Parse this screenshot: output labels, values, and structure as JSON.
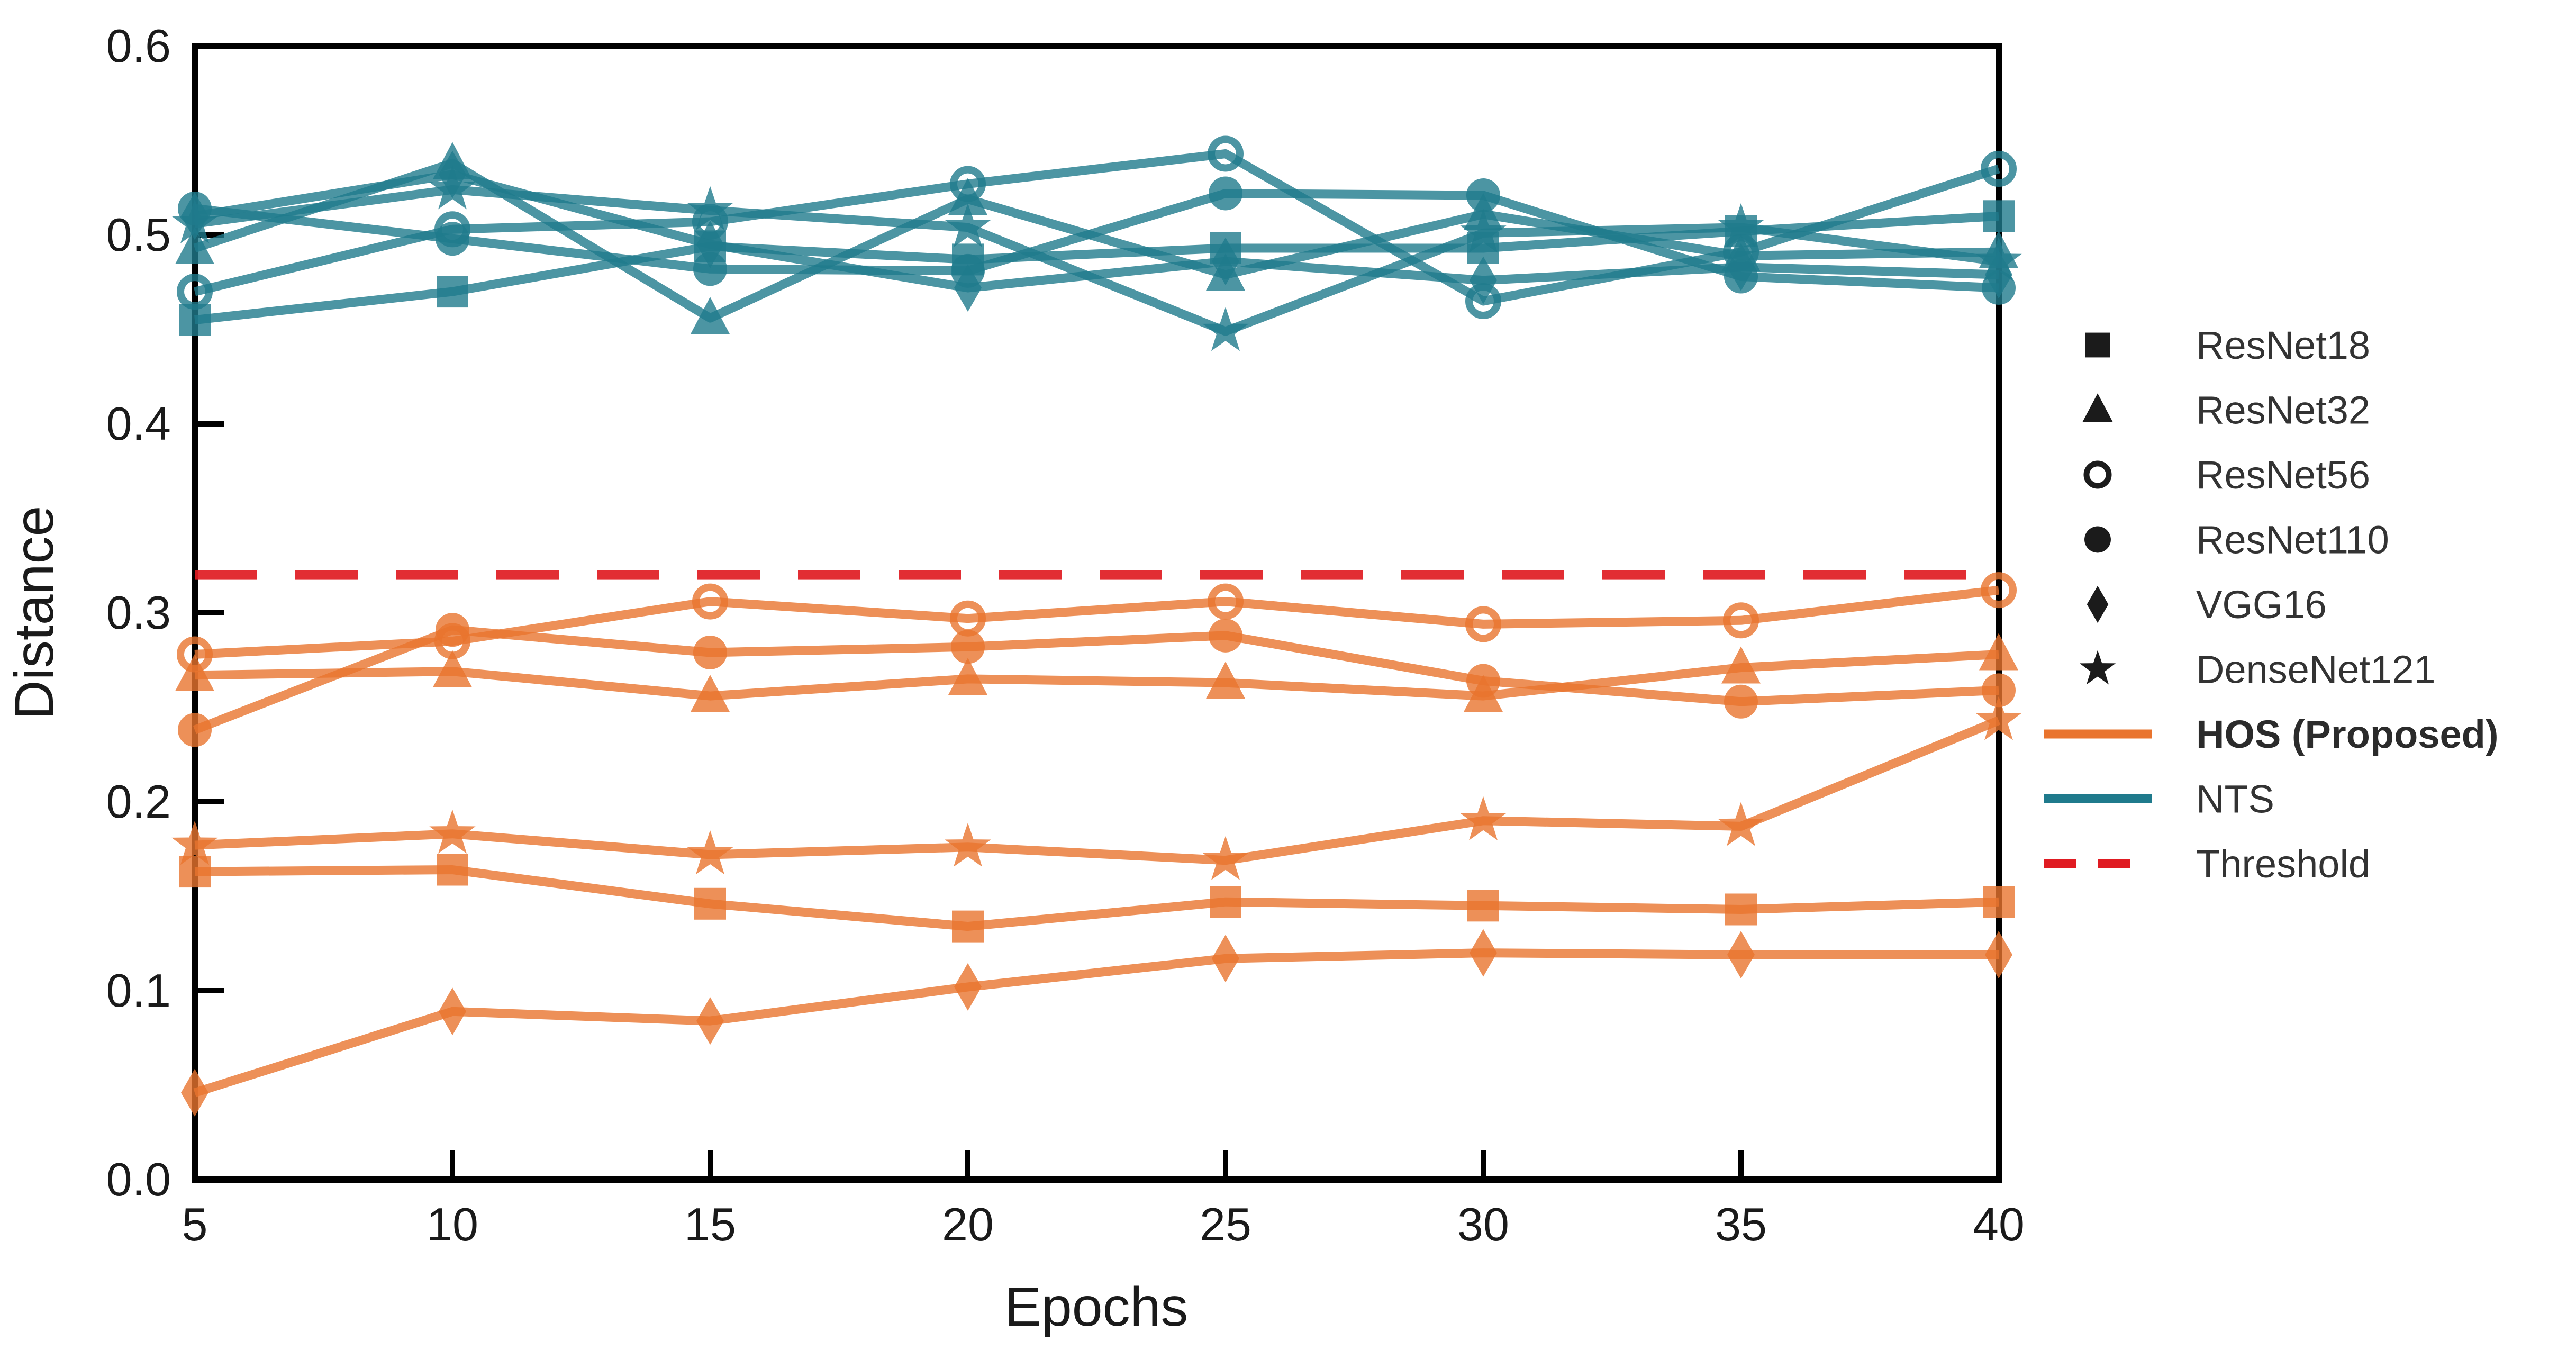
{
  "chart_data": {
    "type": "line",
    "title": "",
    "xlabel": "Epochs",
    "ylabel": "Distance",
    "x": [
      5,
      10,
      15,
      20,
      25,
      30,
      35,
      40
    ],
    "xlim": [
      5,
      40
    ],
    "ylim": [
      0.0,
      0.6
    ],
    "yticks": [
      0.0,
      0.1,
      0.2,
      0.3,
      0.4,
      0.5,
      0.6
    ],
    "ytick_labels": [
      "0.0",
      "0.1",
      "0.2",
      "0.3",
      "0.4",
      "0.5",
      "0.6"
    ],
    "xtick_labels": [
      "5",
      "10",
      "15",
      "20",
      "25",
      "30",
      "35",
      "40"
    ],
    "grid": "off",
    "legend_position": "right",
    "colors": {
      "hos": "#E9742E",
      "nts": "#1F7A8C",
      "threshold": "#E01B22",
      "legend_marker": "#1b1b1b",
      "axis": "#000000"
    },
    "threshold": {
      "label": "Threshold",
      "value": 0.32
    },
    "groups": [
      {
        "id": "hos",
        "label": "HOS (Proposed)",
        "bold": true
      },
      {
        "id": "nts",
        "label": "NTS",
        "bold": false
      }
    ],
    "series": [
      {
        "name": "ResNet18",
        "group": "hos",
        "marker": "square",
        "values": [
          0.163,
          0.164,
          0.146,
          0.134,
          0.147,
          0.145,
          0.143,
          0.147
        ]
      },
      {
        "name": "ResNet32",
        "group": "hos",
        "marker": "triangle",
        "values": [
          0.267,
          0.269,
          0.256,
          0.265,
          0.263,
          0.256,
          0.271,
          0.278
        ]
      },
      {
        "name": "ResNet56",
        "group": "hos",
        "marker": "circle-open",
        "values": [
          0.278,
          0.285,
          0.306,
          0.297,
          0.306,
          0.294,
          0.296,
          0.312
        ]
      },
      {
        "name": "ResNet110",
        "group": "hos",
        "marker": "circle",
        "values": [
          0.238,
          0.291,
          0.279,
          0.282,
          0.288,
          0.264,
          0.253,
          0.259
        ]
      },
      {
        "name": "VGG16",
        "group": "hos",
        "marker": "diamond",
        "values": [
          0.046,
          0.089,
          0.084,
          0.102,
          0.117,
          0.12,
          0.119,
          0.119
        ]
      },
      {
        "name": "DenseNet121",
        "group": "hos",
        "marker": "star",
        "values": [
          0.177,
          0.183,
          0.172,
          0.176,
          0.169,
          0.19,
          0.187,
          0.243
        ]
      },
      {
        "name": "ResNet18",
        "group": "nts",
        "marker": "square",
        "values": [
          0.455,
          0.47,
          0.494,
          0.487,
          0.493,
          0.493,
          0.502,
          0.51
        ]
      },
      {
        "name": "ResNet32",
        "group": "nts",
        "marker": "triangle",
        "values": [
          0.493,
          0.538,
          0.456,
          0.519,
          0.479,
          0.511,
          0.489,
          0.491
        ]
      },
      {
        "name": "ResNet56",
        "group": "nts",
        "marker": "circle-open",
        "values": [
          0.47,
          0.503,
          0.507,
          0.527,
          0.543,
          0.465,
          0.491,
          0.535
        ]
      },
      {
        "name": "ResNet110",
        "group": "nts",
        "marker": "circle",
        "values": [
          0.514,
          0.498,
          0.482,
          0.481,
          0.522,
          0.521,
          0.478,
          0.472
        ]
      },
      {
        "name": "VGG16",
        "group": "nts",
        "marker": "diamond",
        "values": [
          0.51,
          0.532,
          0.495,
          0.472,
          0.486,
          0.476,
          0.483,
          0.479
        ]
      },
      {
        "name": "DenseNet121",
        "group": "nts",
        "marker": "star",
        "values": [
          0.506,
          0.524,
          0.513,
          0.504,
          0.449,
          0.501,
          0.504,
          0.486
        ]
      }
    ],
    "legend_marker_items": [
      {
        "label": "ResNet18",
        "marker": "square"
      },
      {
        "label": "ResNet32",
        "marker": "triangle"
      },
      {
        "label": "ResNet56",
        "marker": "circle-open"
      },
      {
        "label": "ResNet110",
        "marker": "circle"
      },
      {
        "label": "VGG16",
        "marker": "diamond"
      },
      {
        "label": "DenseNet121",
        "marker": "star"
      }
    ],
    "legend_line_items": [
      {
        "label": "HOS (Proposed)",
        "style": "solid",
        "color_key": "hos",
        "bold": true
      },
      {
        "label": "NTS",
        "style": "solid",
        "color_key": "nts",
        "bold": false
      },
      {
        "label": "Threshold",
        "style": "dashed",
        "color_key": "threshold",
        "bold": false
      }
    ]
  }
}
